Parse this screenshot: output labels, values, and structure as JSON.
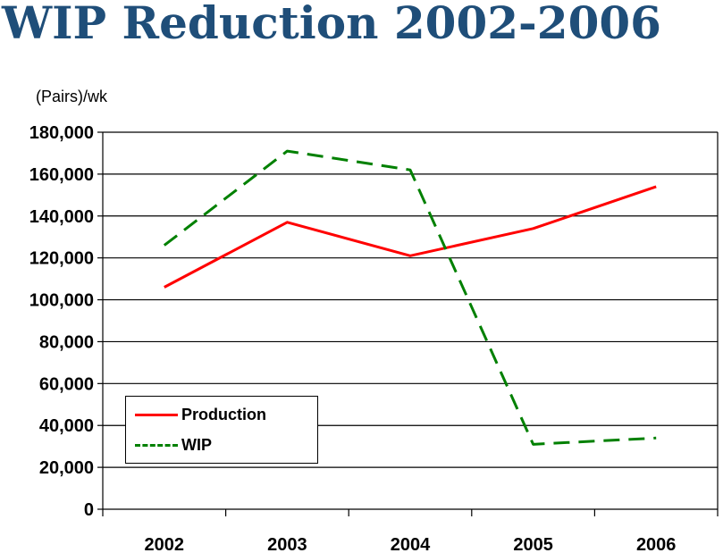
{
  "title": "WIP Reduction 2002-2006",
  "chart_data": {
    "type": "line",
    "title": "WIP Reduction 2002-2006",
    "ylabel": "(Pairs)/wk",
    "xlabel": "",
    "categories": [
      "2002",
      "2003",
      "2004",
      "2005",
      "2006"
    ],
    "ylim": [
      0,
      180000
    ],
    "yticks": [
      0,
      20000,
      40000,
      60000,
      80000,
      100000,
      120000,
      140000,
      160000,
      180000
    ],
    "ytick_labels": [
      "0",
      "20,000",
      "40,000",
      "60,000",
      "80,000",
      "100,000",
      "120,000",
      "140,000",
      "160,000",
      "180,000"
    ],
    "grid": true,
    "legend_position": "bottom-left",
    "series": [
      {
        "name": "Production",
        "color": "#ff0000",
        "style": "solid",
        "values": [
          106000,
          137000,
          121000,
          134000,
          154000
        ]
      },
      {
        "name": "WIP",
        "color": "#008000",
        "style": "dashed",
        "values": [
          126000,
          171000,
          162000,
          31000,
          34000
        ]
      }
    ]
  }
}
